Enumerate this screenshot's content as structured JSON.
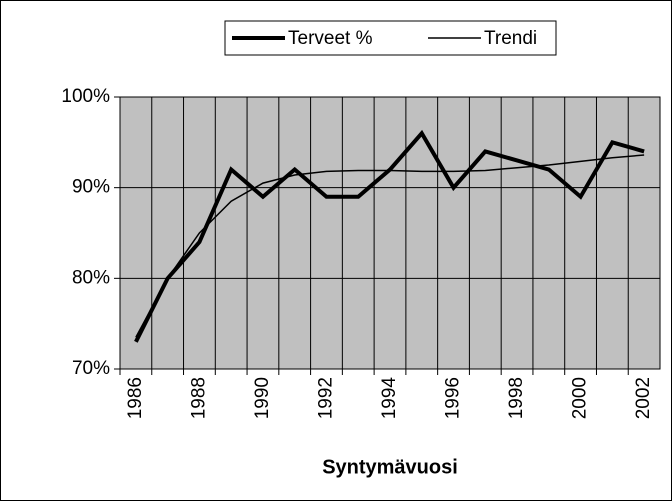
{
  "chart_data": {
    "type": "line",
    "x_label": "Syntymävuosi",
    "categories": [
      "1986",
      null,
      "1988",
      null,
      "1990",
      null,
      "1992",
      null,
      "1994",
      null,
      "1996",
      null,
      "1998",
      null,
      "2000",
      null,
      "2002"
    ],
    "series": [
      {
        "name": "Terveet %",
        "color": "#000000",
        "line_width": 4,
        "values": [
          73,
          80,
          84,
          92,
          89,
          92,
          89,
          89,
          92,
          96,
          90,
          94,
          93,
          92,
          89,
          95,
          94
        ]
      },
      {
        "name": "Trendi",
        "color": "#000000",
        "line_width": 1.5,
        "values": [
          73.5,
          80,
          85,
          88.5,
          90.5,
          91.4,
          91.8,
          91.9,
          91.9,
          91.8,
          91.8,
          91.9,
          92.2,
          92.5,
          92.9,
          93.3,
          93.6
        ]
      }
    ],
    "ylim": [
      70,
      100
    ],
    "yticks": [
      {
        "value": 70,
        "label": "70%"
      },
      {
        "value": 80,
        "label": "80%"
      },
      {
        "value": 90,
        "label": "90%"
      },
      {
        "value": 100,
        "label": "100%"
      }
    ],
    "grid": true,
    "legend": "top"
  }
}
